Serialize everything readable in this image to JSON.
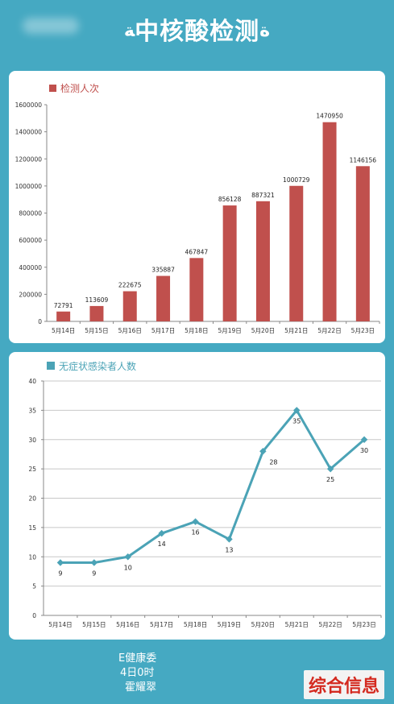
{
  "header": {
    "title": "中核酸检测",
    "mark_left": "ﺔ",
    "mark_right": "ﺓ"
  },
  "footer": {
    "line1": "E健康委",
    "line2": "4日0时",
    "line3": "霍耀翠",
    "logo": "综合信息"
  },
  "colors": {
    "bar": "#c0504d",
    "line": "#4ba3b6",
    "background": "#45a9c2"
  },
  "chart_data": [
    {
      "type": "bar",
      "legend": "检测人次",
      "categories": [
        "5月14日",
        "5月15日",
        "5月16日",
        "5月17日",
        "5月18日",
        "5月19日",
        "5月20日",
        "5月21日",
        "5月22日",
        "5月23日"
      ],
      "values": [
        72791,
        113609,
        222675,
        335887,
        467847,
        856128,
        887321,
        1000729,
        1470950,
        1146156
      ],
      "ylim": [
        0,
        1600000
      ],
      "yticks": [
        0,
        200000,
        400000,
        600000,
        800000,
        1000000,
        1200000,
        1400000,
        1600000
      ],
      "grid": false
    },
    {
      "type": "line",
      "legend": "无症状感染者人数",
      "categories": [
        "5月14日",
        "5月15日",
        "5月16日",
        "5月17日",
        "5月18日",
        "5月19日",
        "5月20日",
        "5月21日",
        "5月22日",
        "5月23日"
      ],
      "values": [
        9,
        9,
        10,
        14,
        16,
        13,
        28,
        35,
        25,
        30
      ],
      "ylim": [
        0,
        40
      ],
      "yticks": [
        0,
        5,
        10,
        15,
        20,
        25,
        30,
        35,
        40
      ],
      "grid": true
    }
  ]
}
